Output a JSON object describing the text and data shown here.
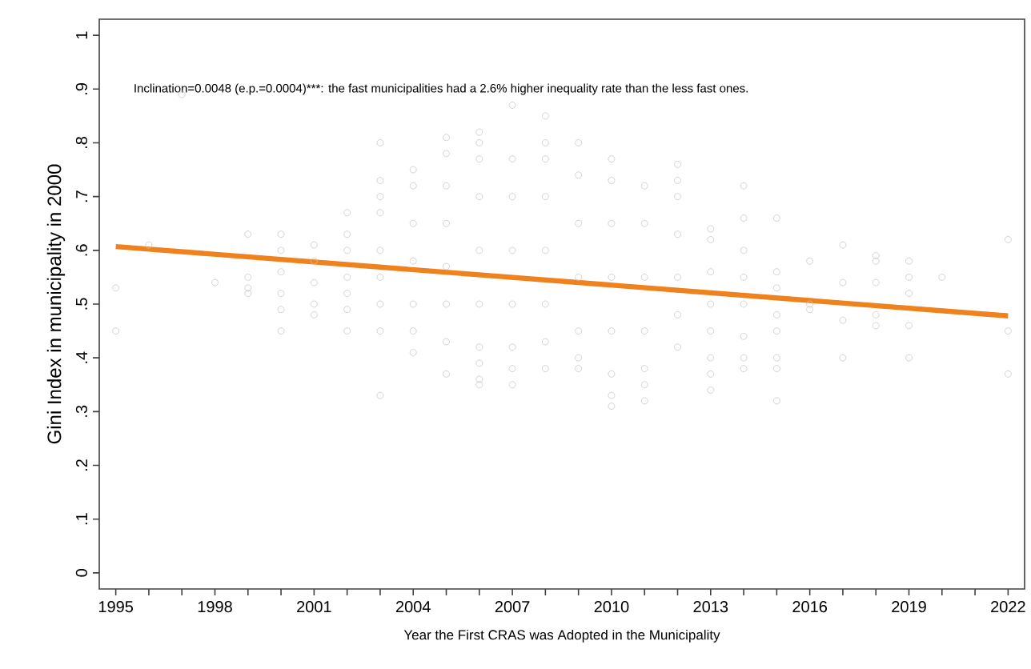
{
  "chart_data": {
    "type": "scatter",
    "xlabel": "Year the First CRAS was Adopted in the Municipality",
    "ylabel": "Gini Index in municipality in 2000",
    "annotations": [
      "Inclination=0.0048 (e.p.=0.0004)***:  the fast municipalities had a 2.6% higher inequality rate than the less fast ones."
    ],
    "xlim": [
      1994.5,
      2022.5
    ],
    "ylim": [
      -0.03,
      1.03
    ],
    "xticks": [
      1995,
      {
        "value": 1996,
        "label": null
      },
      {
        "value": 1997,
        "label": null
      },
      1998,
      {
        "value": 1999,
        "label": null
      },
      {
        "value": 2000,
        "label": null
      },
      2001,
      {
        "value": 2002,
        "label": null
      },
      {
        "value": 2003,
        "label": null
      },
      2004,
      {
        "value": 2005,
        "label": null
      },
      {
        "value": 2006,
        "label": null
      },
      2007,
      {
        "value": 2008,
        "label": null
      },
      {
        "value": 2009,
        "label": null
      },
      2010,
      {
        "value": 2011,
        "label": null
      },
      {
        "value": 2012,
        "label": null
      },
      2013,
      {
        "value": 2014,
        "label": null
      },
      {
        "value": 2015,
        "label": null
      },
      2016,
      {
        "value": 2017,
        "label": null
      },
      {
        "value": 2018,
        "label": null
      },
      2019,
      {
        "value": 2020,
        "label": null
      },
      {
        "value": 2021,
        "label": null
      },
      2022
    ],
    "yticks": [
      0,
      {
        "value": 0.1,
        "label": ".1"
      },
      {
        "value": 0.2,
        "label": ".2"
      },
      {
        "value": 0.3,
        "label": ".3"
      },
      {
        "value": 0.4,
        "label": ".4"
      },
      {
        "value": 0.5,
        "label": ".5"
      },
      {
        "value": 0.6,
        "label": ".6"
      },
      {
        "value": 0.7,
        "label": ".7"
      },
      {
        "value": 0.8,
        "label": ".8"
      },
      {
        "value": 0.9,
        "label": ".9"
      },
      1
    ],
    "grid": false,
    "series": [
      {
        "marker": "circle",
        "color": "#c8c8c8",
        "x": [
          1995,
          1995,
          1996,
          1997,
          1998,
          1999,
          1999,
          1999,
          1999,
          2000,
          2000,
          2000,
          2000,
          2000,
          2000,
          2001,
          2001,
          2001,
          2001,
          2001,
          2002,
          2002,
          2002,
          2002,
          2002,
          2002,
          2002,
          2003,
          2003,
          2003,
          2003,
          2003,
          2003,
          2003,
          2003,
          2003,
          2004,
          2004,
          2004,
          2004,
          2004,
          2004,
          2004,
          2005,
          2005,
          2005,
          2005,
          2005,
          2005,
          2005,
          2005,
          2006,
          2006,
          2006,
          2006,
          2006,
          2006,
          2006,
          2006,
          2006,
          2006,
          2007,
          2007,
          2007,
          2007,
          2007,
          2007,
          2007,
          2007,
          2008,
          2008,
          2008,
          2008,
          2008,
          2008,
          2008,
          2008,
          2009,
          2009,
          2009,
          2009,
          2009,
          2009,
          2009,
          2010,
          2010,
          2010,
          2010,
          2010,
          2010,
          2010,
          2010,
          2011,
          2011,
          2011,
          2011,
          2011,
          2011,
          2011,
          2012,
          2012,
          2012,
          2012,
          2012,
          2012,
          2012,
          2013,
          2013,
          2013,
          2013,
          2013,
          2013,
          2013,
          2013,
          2014,
          2014,
          2014,
          2014,
          2014,
          2014,
          2014,
          2014,
          2015,
          2015,
          2015,
          2015,
          2015,
          2015,
          2015,
          2015,
          2016,
          2016,
          2016,
          2017,
          2017,
          2017,
          2017,
          2018,
          2018,
          2018,
          2018,
          2018,
          2019,
          2019,
          2019,
          2019,
          2019,
          2020,
          2022,
          2022,
          2022
        ],
        "values": [
          0.53,
          0.45,
          0.61,
          0.89,
          0.54,
          0.63,
          0.55,
          0.53,
          0.52,
          0.63,
          0.6,
          0.56,
          0.52,
          0.49,
          0.45,
          0.61,
          0.58,
          0.54,
          0.5,
          0.48,
          0.67,
          0.63,
          0.6,
          0.55,
          0.52,
          0.49,
          0.45,
          0.8,
          0.73,
          0.7,
          0.67,
          0.6,
          0.55,
          0.5,
          0.45,
          0.33,
          0.75,
          0.72,
          0.65,
          0.58,
          0.5,
          0.45,
          0.41,
          0.81,
          0.78,
          0.72,
          0.65,
          0.57,
          0.5,
          0.43,
          0.37,
          0.82,
          0.8,
          0.77,
          0.7,
          0.6,
          0.5,
          0.42,
          0.39,
          0.36,
          0.35,
          0.87,
          0.77,
          0.7,
          0.6,
          0.5,
          0.42,
          0.38,
          0.35,
          0.85,
          0.8,
          0.77,
          0.7,
          0.6,
          0.5,
          0.43,
          0.38,
          0.8,
          0.74,
          0.65,
          0.55,
          0.45,
          0.4,
          0.38,
          0.77,
          0.73,
          0.65,
          0.55,
          0.45,
          0.37,
          0.33,
          0.31,
          0.72,
          0.65,
          0.55,
          0.45,
          0.38,
          0.35,
          0.32,
          0.76,
          0.73,
          0.7,
          0.63,
          0.55,
          0.48,
          0.42,
          0.64,
          0.62,
          0.56,
          0.5,
          0.45,
          0.4,
          0.37,
          0.34,
          0.72,
          0.66,
          0.6,
          0.55,
          0.5,
          0.44,
          0.4,
          0.38,
          0.66,
          0.56,
          0.53,
          0.48,
          0.45,
          0.4,
          0.38,
          0.32,
          0.58,
          0.5,
          0.49,
          0.61,
          0.54,
          0.47,
          0.4,
          0.59,
          0.58,
          0.54,
          0.48,
          0.46,
          0.58,
          0.55,
          0.52,
          0.46,
          0.4,
          0.55,
          0.62,
          0.45,
          0.37
        ]
      },
      {
        "type": "line",
        "marker": "none",
        "line_style": "solid",
        "color": "#f0821e",
        "x": [
          1995,
          2022
        ],
        "values": [
          0.607,
          0.478
        ]
      }
    ]
  }
}
